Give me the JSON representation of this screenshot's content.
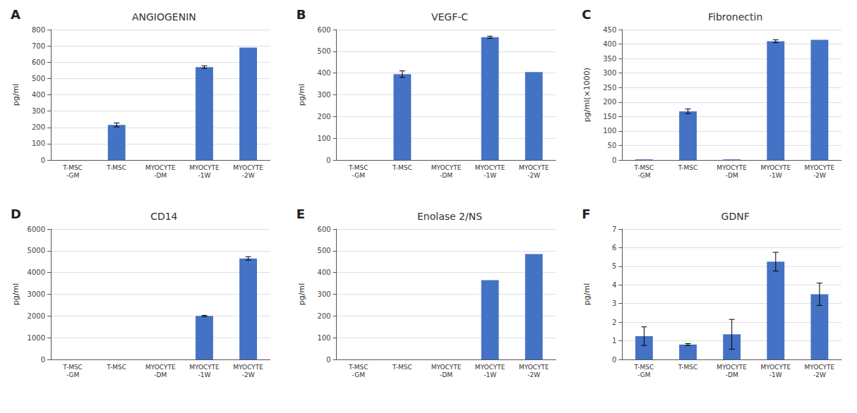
{
  "chart_data": [
    {
      "type": "bar",
      "annotation": "A",
      "title": "ANGIOGENIN",
      "ylabel": "pg/ml",
      "categories": [
        "T-MSC\n-GM",
        "T-MSC",
        "MYOCYTE\n-DM",
        "MYOCYTE\n-1W",
        "MYOCYTE\n-2W"
      ],
      "values": [
        0,
        215,
        0,
        570,
        690
      ],
      "errors": [
        0,
        12,
        0,
        8,
        0
      ],
      "color": "#4472C4",
      "ylim": [
        0,
        800
      ],
      "yticks": [
        0,
        100,
        200,
        300,
        400,
        500,
        600,
        700,
        800
      ],
      "grid": true
    },
    {
      "type": "bar",
      "annotation": "B",
      "title": "VEGF-C",
      "ylabel": "pg/ml",
      "categories": [
        "T-MSC\n-GM",
        "T-MSC",
        "MYOCYTE\n-DM",
        "MYOCYTE\n-1W",
        "MYOCYTE\n-2W"
      ],
      "values": [
        0,
        395,
        0,
        565,
        405
      ],
      "errors": [
        0,
        15,
        0,
        5,
        0
      ],
      "color": "#4472C4",
      "ylim": [
        0,
        600
      ],
      "yticks": [
        0,
        100,
        200,
        300,
        400,
        500,
        600
      ],
      "grid": true
    },
    {
      "type": "bar",
      "annotation": "C",
      "title": "Fibronectin",
      "ylabel": "pg/ml(×1000)",
      "categories": [
        "T-MSC\n-GM",
        "T-MSC",
        "MYOCYTE\n-DM",
        "MYOCYTE\n-1W",
        "MYOCYTE\n-2W"
      ],
      "values": [
        2,
        168,
        2,
        410,
        415
      ],
      "errors": [
        0,
        8,
        0,
        5,
        0
      ],
      "color": "#4472C4",
      "ylim": [
        0,
        450
      ],
      "yticks": [
        0,
        50,
        100,
        150,
        200,
        250,
        300,
        350,
        400,
        450
      ],
      "grid": true
    },
    {
      "type": "bar",
      "annotation": "D",
      "title": "CD14",
      "ylabel": "pg/ml",
      "categories": [
        "T-MSC\n-GM",
        "T-MSC",
        "MYOCYTE\n-DM",
        "MYOCYTE\n-1W",
        "MYOCYTE\n-2W"
      ],
      "values": [
        0,
        0,
        0,
        2000,
        4650
      ],
      "errors": [
        0,
        0,
        0,
        30,
        80
      ],
      "color": "#4472C4",
      "ylim": [
        0,
        6000
      ],
      "yticks": [
        0,
        1000,
        2000,
        3000,
        4000,
        5000,
        6000
      ],
      "grid": true
    },
    {
      "type": "bar",
      "annotation": "E",
      "title": "Enolase 2/NS",
      "ylabel": "pg/ml",
      "categories": [
        "T-MSC\n-GM",
        "T-MSC",
        "MYOCYTE\n-DM",
        "MYOCYTE\n-1W",
        "MYOCYTE\n-2W"
      ],
      "values": [
        0,
        0,
        0,
        365,
        485
      ],
      "errors": [
        0,
        0,
        0,
        0,
        0
      ],
      "color": "#4472C4",
      "ylim": [
        0,
        600
      ],
      "yticks": [
        0,
        100,
        200,
        300,
        400,
        500,
        600
      ],
      "grid": true
    },
    {
      "type": "bar",
      "annotation": "F",
      "title": "GDNF",
      "ylabel": "pg/ml",
      "categories": [
        "T-MSC\n-GM",
        "T-MSC",
        "MYOCYTE\n-DM",
        "MYOCYTE\n-1W",
        "MYOCYTE\n-2W"
      ],
      "values": [
        1.25,
        0.8,
        1.35,
        5.25,
        3.5
      ],
      "errors": [
        0.5,
        0.05,
        0.8,
        0.5,
        0.6
      ],
      "color": "#4472C4",
      "ylim": [
        0,
        7
      ],
      "yticks": [
        0,
        1,
        2,
        3,
        4,
        5,
        6,
        7
      ],
      "grid": true
    }
  ]
}
